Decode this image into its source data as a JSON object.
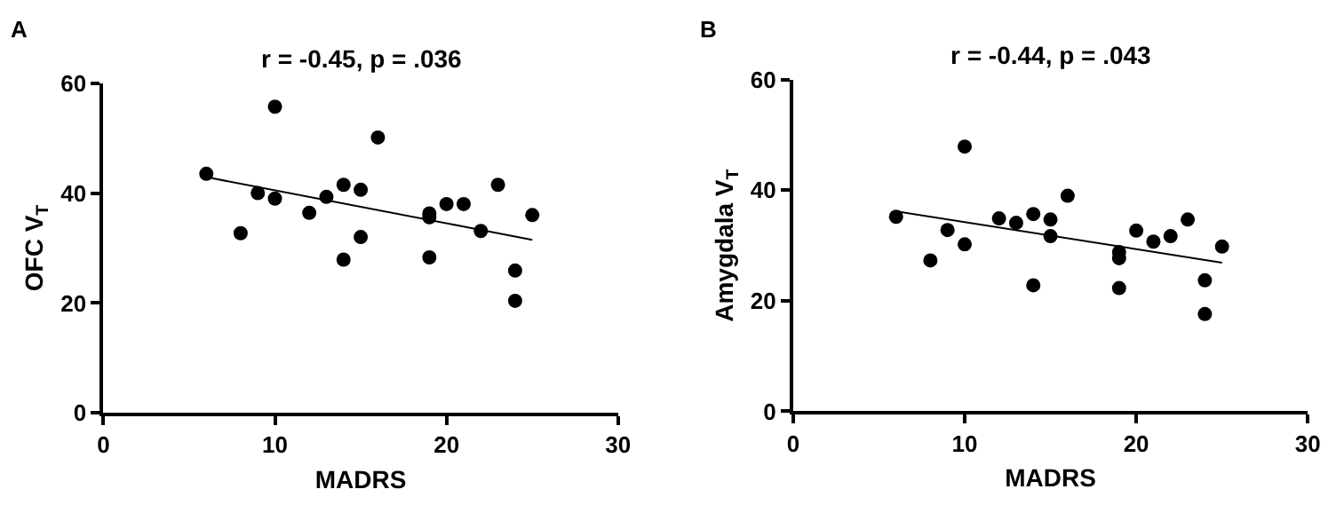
{
  "chart_data": [
    {
      "type": "scatter",
      "title": "r = -0.45, p = .036",
      "xlabel": "MADRS",
      "ylabel": "OFC V$_{T}$",
      "annotations": [
        "A"
      ],
      "xlim": [
        0,
        30
      ],
      "xticks": [
        0,
        10,
        20,
        30
      ],
      "ylim": [
        0,
        60
      ],
      "yticks": [
        0,
        20,
        40,
        60
      ],
      "series": [
        {
          "marker": "circle",
          "color": "#000000",
          "x": [
            6,
            8,
            9,
            10,
            10,
            12,
            13,
            14,
            14,
            15,
            15,
            16,
            19,
            19,
            19,
            20,
            21,
            22,
            23,
            24,
            24,
            25
          ],
          "values": [
            43.5,
            32.7,
            40,
            55.7,
            39,
            36.4,
            39.3,
            41.5,
            27.9,
            40.6,
            32,
            50.1,
            36.3,
            35.6,
            28.3,
            38,
            38,
            33.1,
            41.5,
            25.9,
            20.4,
            36
          ]
        },
        {
          "type": "line",
          "color": "#000000",
          "x": [
            6,
            25
          ],
          "values": [
            42.9,
            31.5
          ]
        }
      ]
    },
    {
      "type": "scatter",
      "title": "r = -0.44, p = .043",
      "xlabel": "MADRS",
      "ylabel": "Amygdala V$_{T}$",
      "annotations": [
        "B"
      ],
      "xlim": [
        0,
        30
      ],
      "xticks": [
        0,
        10,
        20,
        30
      ],
      "ylim": [
        0,
        60
      ],
      "yticks": [
        0,
        20,
        40,
        60
      ],
      "series": [
        {
          "marker": "circle",
          "color": "#000000",
          "x": [
            6,
            8,
            9,
            10,
            10,
            12,
            13,
            14,
            14,
            15,
            15,
            16,
            19,
            19,
            19,
            20,
            21,
            22,
            23,
            24,
            24,
            25
          ],
          "values": [
            35.2,
            27.3,
            32.8,
            47.9,
            30.2,
            34.9,
            34.1,
            35.7,
            22.8,
            34.7,
            31.7,
            39,
            28.8,
            27.7,
            22.3,
            32.7,
            30.7,
            31.7,
            34.7,
            23.7,
            17.6,
            29.8
          ]
        },
        {
          "type": "line",
          "color": "#000000",
          "x": [
            6,
            25
          ],
          "values": [
            36.2,
            26.9
          ]
        }
      ]
    }
  ]
}
